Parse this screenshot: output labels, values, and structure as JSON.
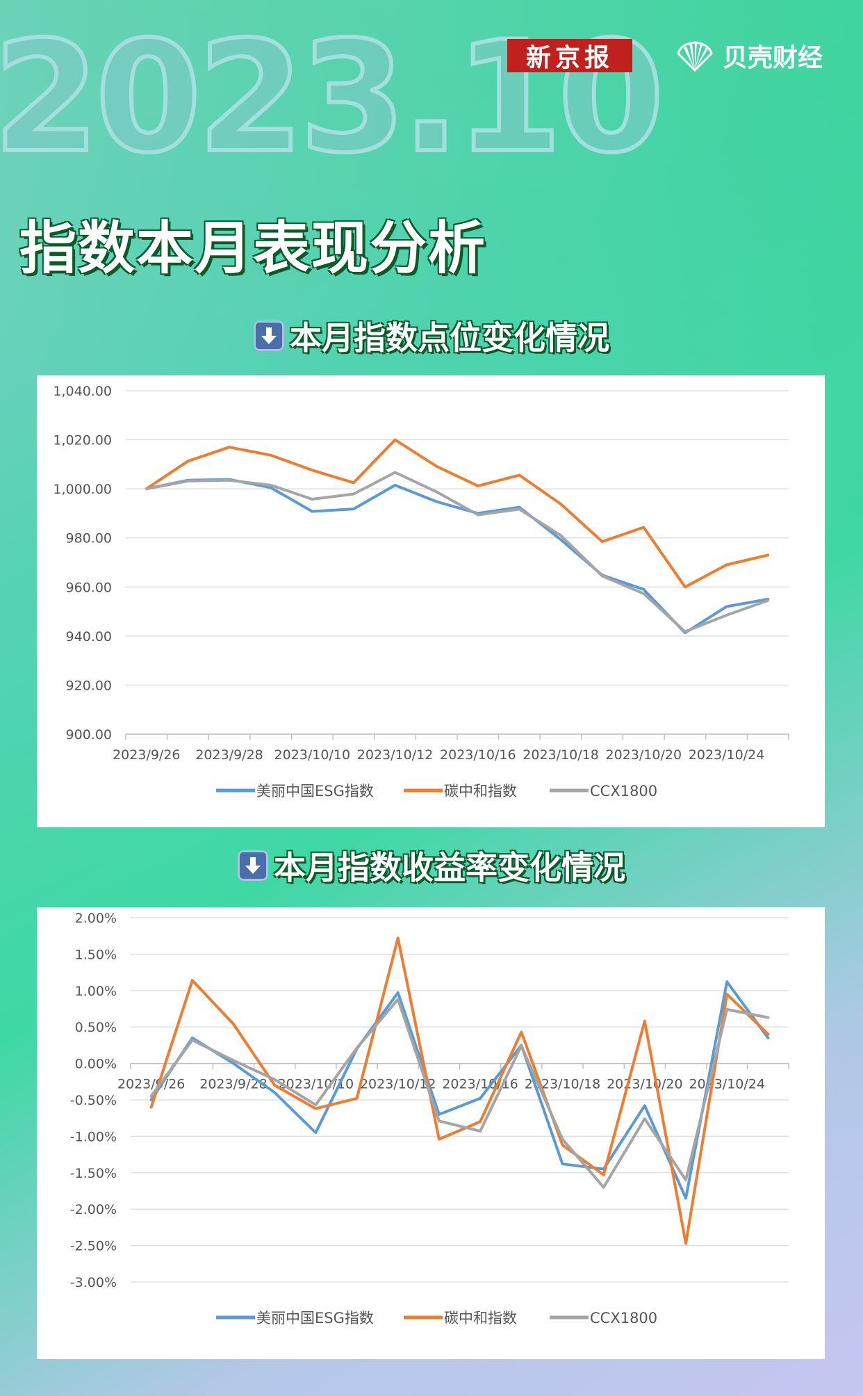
{
  "header": {
    "watermark": "2023.10",
    "brand_left": "新京报",
    "brand_right": "贝壳财经",
    "main_title": "指数本月表现分析"
  },
  "colors": {
    "esg": "#5b9bd5",
    "carbon": "#ed7d31",
    "ccx": "#a5a5a5",
    "grid": "#d9d9d9",
    "brand_red": "#c0201e",
    "title_shadow": "#0b5a2a"
  },
  "section1": {
    "heading": "本月指数点位变化情况",
    "icon": "down-arrow-icon"
  },
  "section2": {
    "heading": "本月指数收益率变化情况",
    "icon": "down-arrow-icon"
  },
  "chart_data": [
    {
      "type": "line",
      "x_tick_labels": [
        "2023/9/26",
        "2023/9/28",
        "2023/10/10",
        "2023/10/12",
        "2023/10/16",
        "2023/10/18",
        "2023/10/20",
        "2023/10/24"
      ],
      "num_points": 16,
      "ylim": [
        900,
        1040
      ],
      "y_ticks": [
        "900.00",
        "920.00",
        "940.00",
        "960.00",
        "980.00",
        "1,000.00",
        "1,020.00",
        "1,040.00"
      ],
      "y_tick_values": [
        900,
        920,
        940,
        960,
        980,
        1000,
        1020,
        1040
      ],
      "grid": true,
      "legend": "bottom",
      "series": [
        {
          "name": "美丽中国ESG指数",
          "key": "esg",
          "values": [
            1000,
            1003.5,
            1003.8,
            1000.5,
            990.8,
            991.8,
            1001.5,
            994.8,
            990,
            992.5,
            979.3,
            964.8,
            959,
            941.3,
            952,
            955
          ]
        },
        {
          "name": "碳中和指数",
          "key": "carbon",
          "values": [
            1000,
            1011.3,
            1017,
            1013.7,
            1007.6,
            1002.5,
            1020,
            1009.2,
            1001.2,
            1005.6,
            993.8,
            978.5,
            984.3,
            960,
            969,
            973
          ]
        },
        {
          "name": "CCX1800",
          "key": "ccx",
          "values": [
            1000,
            1003.2,
            1003.5,
            1001.5,
            995.8,
            997.9,
            1006.7,
            998.8,
            989.4,
            991.7,
            981,
            964.5,
            957.3,
            941.8,
            948.5,
            954.5
          ]
        }
      ]
    },
    {
      "type": "line",
      "x_tick_labels": [
        "2023/9/26",
        "2023/9/28",
        "2023/10/10",
        "2023/10/12",
        "2023/10/16",
        "2023/10/18",
        "2023/10/20",
        "2023/10/24"
      ],
      "num_points": 16,
      "ylim": [
        -3.0,
        2.0
      ],
      "y_ticks": [
        "-3.00%",
        "-2.50%",
        "-2.00%",
        "-1.50%",
        "-1.00%",
        "-0.50%",
        "0.00%",
        "0.50%",
        "1.00%",
        "1.50%",
        "2.00%"
      ],
      "y_tick_values": [
        -3.0,
        -2.5,
        -2.0,
        -1.5,
        -1.0,
        -0.5,
        0.0,
        0.5,
        1.0,
        1.5,
        2.0
      ],
      "grid": true,
      "legend": "bottom",
      "series": [
        {
          "name": "美丽中国ESG指数",
          "key": "esg",
          "values": [
            -0.5,
            0.35,
            0.0,
            -0.4,
            -0.95,
            0.2,
            0.97,
            -0.7,
            -0.48,
            0.25,
            -1.38,
            -1.45,
            -0.58,
            -1.85,
            1.12,
            0.35
          ]
        },
        {
          "name": "碳中和指数",
          "key": "carbon",
          "values": [
            -0.6,
            1.14,
            0.54,
            -0.3,
            -0.62,
            -0.48,
            1.72,
            -1.04,
            -0.8,
            0.43,
            -1.12,
            -1.53,
            0.58,
            -2.47,
            0.95,
            0.4
          ]
        },
        {
          "name": "CCX1800",
          "key": "ccx",
          "values": [
            -0.45,
            0.32,
            0.04,
            -0.22,
            -0.57,
            0.21,
            0.88,
            -0.79,
            -0.93,
            0.24,
            -1.04,
            -1.7,
            -0.76,
            -1.6,
            0.74,
            0.63
          ]
        }
      ]
    }
  ]
}
